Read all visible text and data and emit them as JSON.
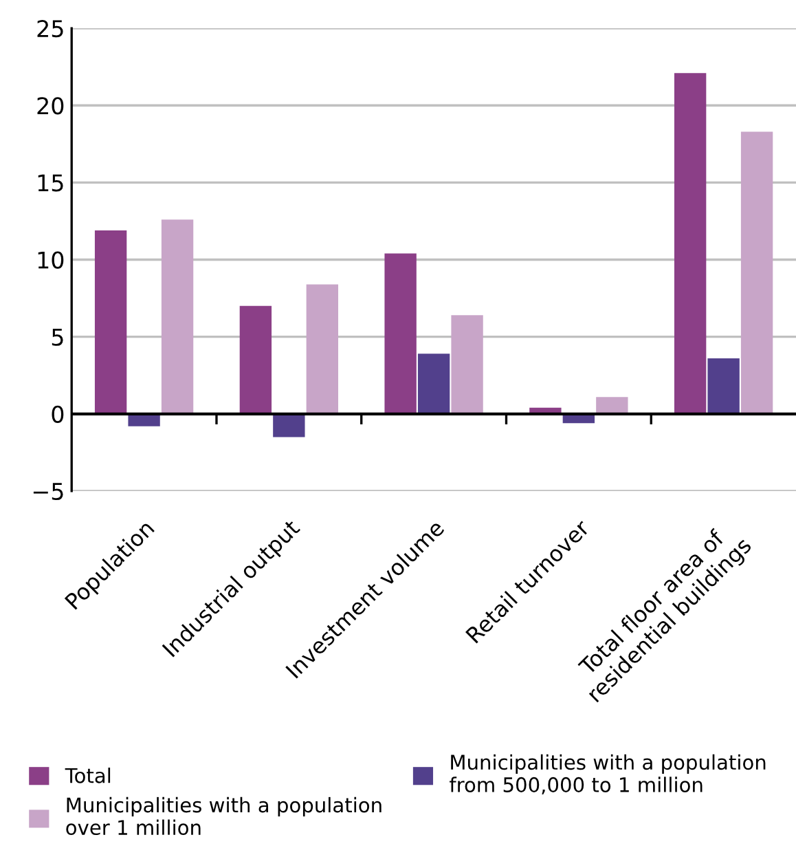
{
  "chart_data": {
    "type": "bar",
    "categories": [
      "Population",
      "Industrial output",
      "Investment volume",
      "Retail turnover",
      "Total floor area of\nresidential buildings"
    ],
    "series": [
      {
        "name": "Total",
        "color": "#8b3f87",
        "values": [
          11.9,
          7.0,
          10.4,
          0.4,
          22.1
        ]
      },
      {
        "name": "Municipalities with a population\nfrom 500,000 to 1 million",
        "color": "#52408c",
        "values": [
          -0.8,
          -1.5,
          3.9,
          -0.6,
          3.6
        ]
      },
      {
        "name": "Municipalities with a population\nover 1 million",
        "color": "#c8a5c8",
        "values": [
          12.6,
          8.4,
          6.4,
          1.1,
          18.3
        ]
      }
    ],
    "ylim": [
      -5,
      25
    ],
    "yticks": [
      {
        "value": -5,
        "label": "−5"
      },
      0,
      5,
      10,
      15,
      20,
      25
    ],
    "grid": "y",
    "legend": "bottom"
  }
}
